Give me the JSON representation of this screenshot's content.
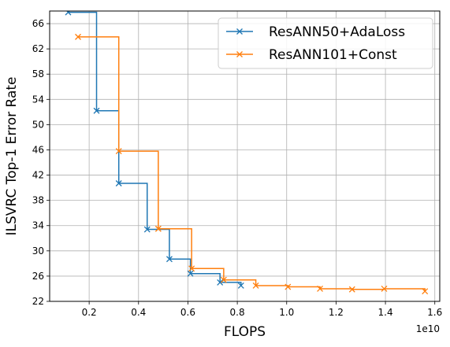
{
  "chart_data": {
    "type": "line",
    "xlabel": "FLOPS",
    "ylabel": "ILSVRC Top-1 Error Rate",
    "x_offset_label": "1e10",
    "xlim": [
      0.04,
      1.62
    ],
    "ylim": [
      22,
      68
    ],
    "x_ticks": [
      0.2,
      0.4,
      0.6,
      0.8,
      1.0,
      1.2,
      1.4,
      1.6
    ],
    "x_tick_labels": [
      "0.2",
      "0.4",
      "0.6",
      "0.8",
      "1.0",
      "1.2",
      "1.4",
      "1.6"
    ],
    "y_ticks": [
      22,
      26,
      30,
      34,
      38,
      42,
      46,
      50,
      54,
      58,
      62,
      66
    ],
    "y_tick_labels": [
      "22",
      "26",
      "30",
      "34",
      "38",
      "42",
      "46",
      "50",
      "54",
      "58",
      "62",
      "66"
    ],
    "grid": true,
    "legend_position": "top-right",
    "step": "post",
    "series": [
      {
        "name": "ResANN50+AdaLoss",
        "color": "#1f77b4",
        "marker": "x",
        "x": [
          0.115,
          0.23,
          0.32,
          0.435,
          0.525,
          0.61,
          0.73,
          0.815
        ],
        "y": [
          67.8,
          52.2,
          40.7,
          33.4,
          28.7,
          26.4,
          25.0,
          24.5
        ]
      },
      {
        "name": "ResANN101+Const",
        "color": "#ff7f0e",
        "marker": "x",
        "x": [
          0.155,
          0.32,
          0.48,
          0.615,
          0.745,
          0.875,
          1.005,
          1.135,
          1.265,
          1.395,
          1.56
        ],
        "y": [
          63.9,
          45.8,
          33.5,
          27.2,
          25.4,
          24.5,
          24.3,
          24.0,
          23.9,
          24.0,
          23.6
        ]
      }
    ]
  }
}
